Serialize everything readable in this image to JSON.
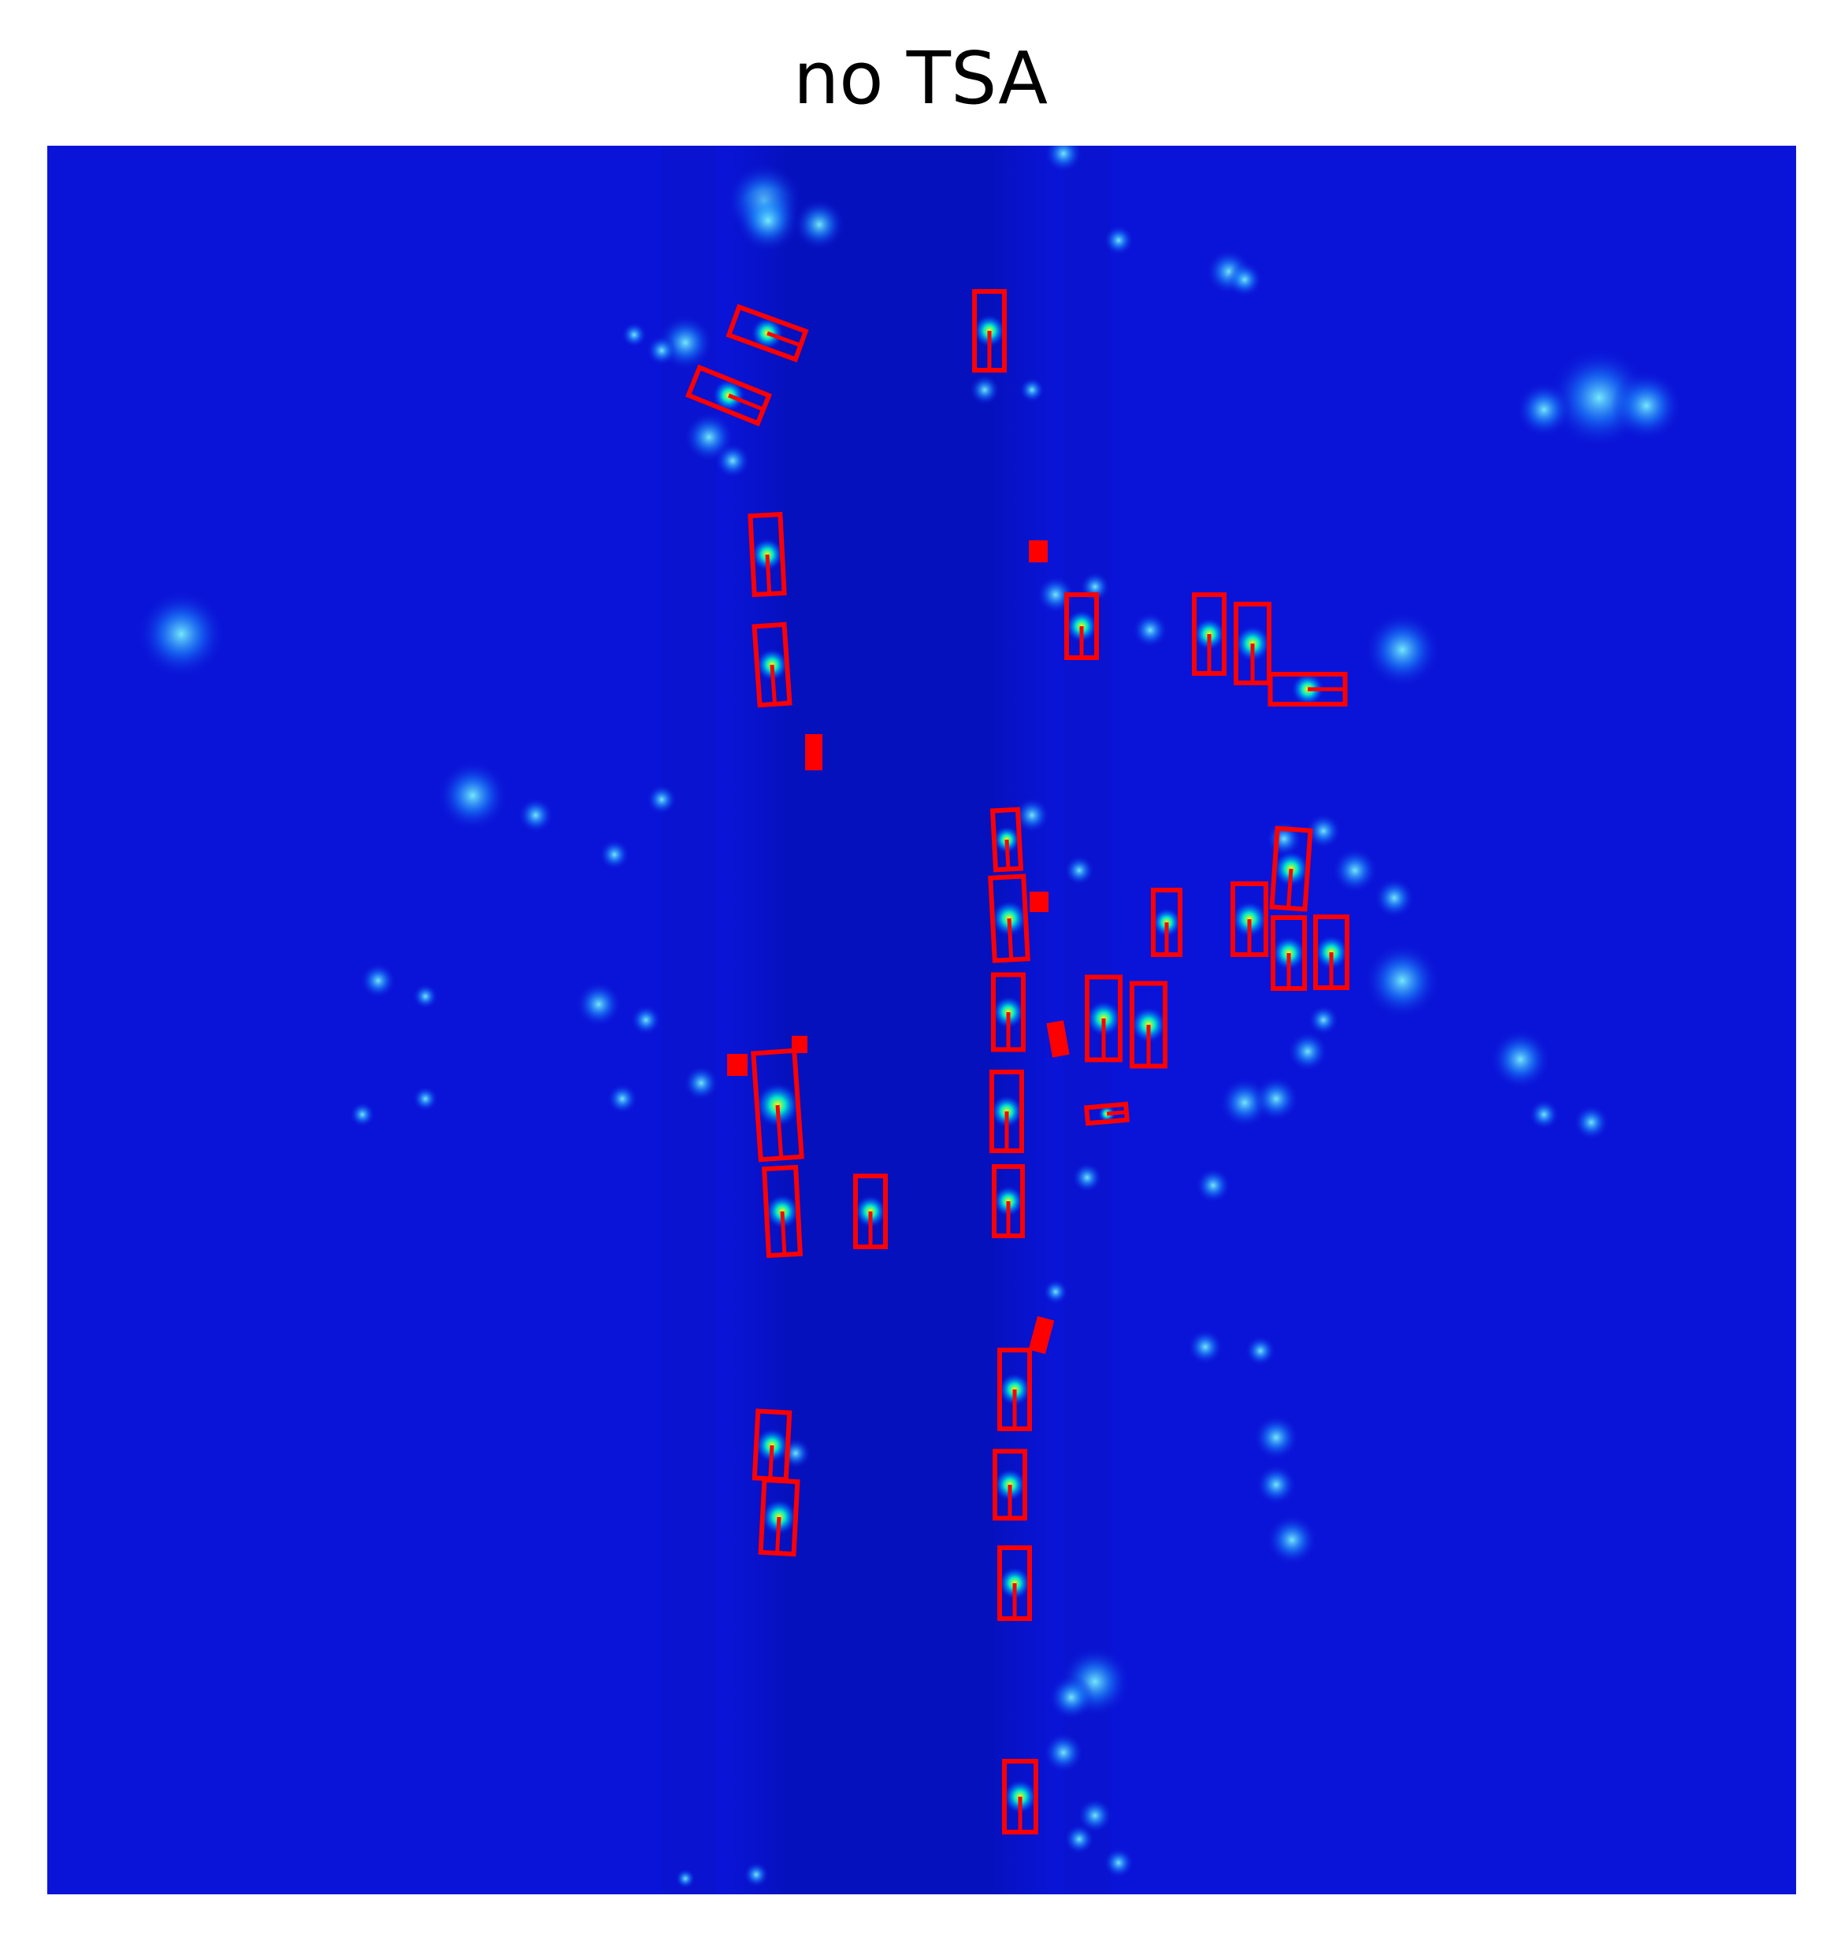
{
  "title": "no TSA",
  "colors": {
    "background": "#0a14d8",
    "road": "#0510c8",
    "box": "#ff0000",
    "hot": "#ffff00",
    "warm": "#00e5ff"
  }
}
